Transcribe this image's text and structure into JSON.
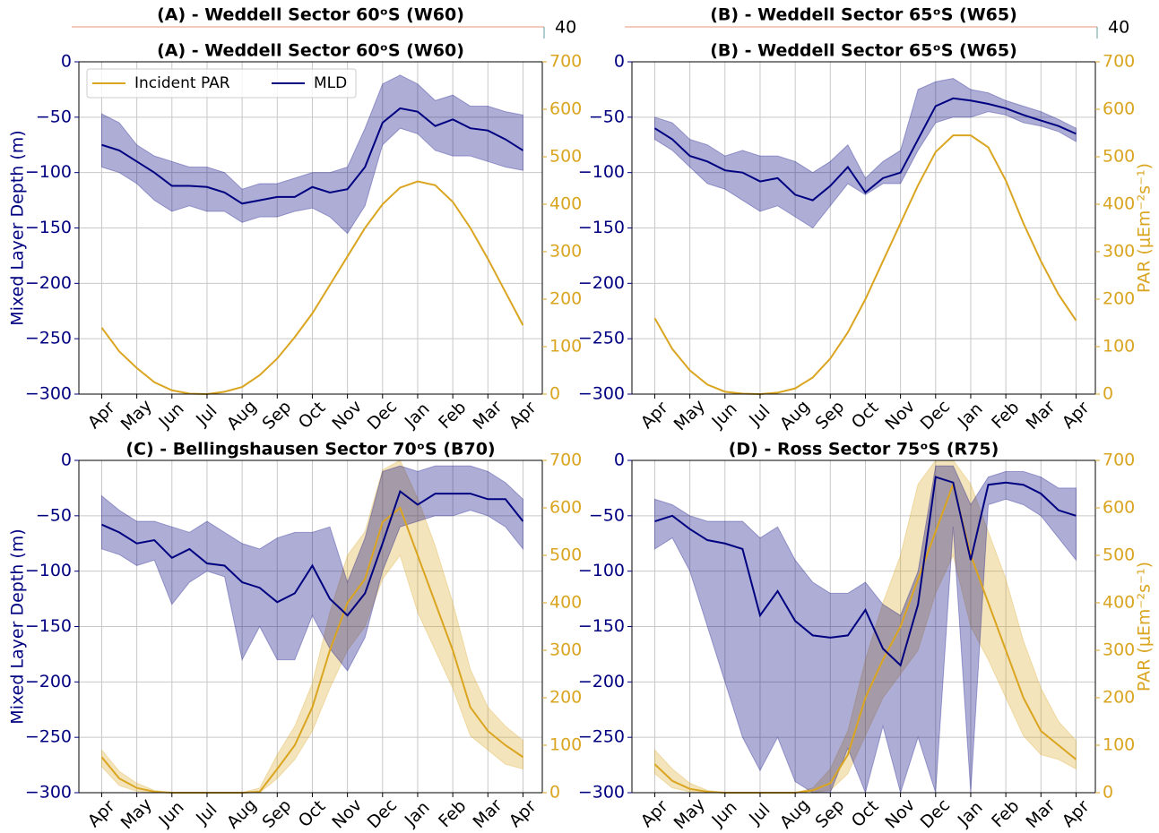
{
  "chart_data": [
    {
      "type": "line",
      "title": "(A) - Weddell Sector 60ᵒS (W60)",
      "overlay_title": "(A) - Weddell Sector 60ᵒS (W60)",
      "overlay_label": "40",
      "y_label": "Mixed Layer Depth (m)",
      "grid": true,
      "legend": "upper left",
      "x": [
        0,
        0.5,
        1,
        1.5,
        2,
        2.5,
        3,
        3.5,
        4,
        4.5,
        5,
        5.5,
        6,
        6.5,
        7,
        7.5,
        8,
        8.5,
        9,
        9.5,
        10,
        10.5,
        11,
        11.5,
        12
      ],
      "xlim": [
        -0.65,
        12.55
      ],
      "xticks": [
        {
          "value": 0,
          "label": "Apr"
        },
        {
          "value": 1,
          "label": "May"
        },
        {
          "value": 2,
          "label": "Jun"
        },
        {
          "value": 3,
          "label": "Jul"
        },
        {
          "value": 4,
          "label": "Aug"
        },
        {
          "value": 5,
          "label": "Sep"
        },
        {
          "value": 6,
          "label": "Oct"
        },
        {
          "value": 7,
          "label": "Nov"
        },
        {
          "value": 8,
          "label": "Dec"
        },
        {
          "value": 9,
          "label": "Jan"
        },
        {
          "value": 10,
          "label": "Feb"
        },
        {
          "value": 11,
          "label": "Mar"
        },
        {
          "value": 12,
          "label": "Apr"
        }
      ],
      "ylim": [
        -300,
        0
      ],
      "yticks": [
        {
          "value": -300,
          "label": "−300"
        },
        {
          "value": -250,
          "label": "−250"
        },
        {
          "value": -200,
          "label": "−200"
        },
        {
          "value": -150,
          "label": "−150"
        },
        {
          "value": -100,
          "label": "−100"
        },
        {
          "value": -50,
          "label": "−50"
        },
        0
      ],
      "y2lim": [
        0,
        700
      ],
      "y2ticks": [
        0,
        100,
        200,
        300,
        400,
        500,
        600,
        700
      ],
      "series": [
        {
          "name": "Incident PAR",
          "color": "#daa520",
          "axis": "y2",
          "values": [
            140,
            90,
            55,
            25,
            8,
            1,
            0,
            5,
            15,
            40,
            75,
            120,
            170,
            230,
            290,
            350,
            400,
            435,
            448,
            440,
            405,
            350,
            285,
            215,
            145
          ]
        },
        {
          "name": "MLD",
          "color": "#000080",
          "values": [
            -75,
            -80,
            -90,
            -100,
            -112,
            -112,
            -113,
            -118,
            -128,
            -125,
            -122,
            -122,
            -113,
            -118,
            -115,
            -95,
            -55,
            -42,
            -45,
            -58,
            -52,
            -60,
            -62,
            -70,
            -80
          ],
          "band_low": [
            -95,
            -100,
            -110,
            -125,
            -135,
            -130,
            -135,
            -135,
            -145,
            -140,
            -140,
            -135,
            -132,
            -140,
            -155,
            -130,
            -75,
            -60,
            -65,
            -80,
            -85,
            -85,
            -90,
            -95,
            -98
          ],
          "band_high": [
            -47,
            -55,
            -75,
            -85,
            -90,
            -95,
            -95,
            -100,
            -115,
            -110,
            -110,
            -105,
            -100,
            -100,
            -95,
            -60,
            -20,
            -12,
            -20,
            -35,
            -30,
            -40,
            -40,
            -45,
            -48
          ]
        }
      ]
    },
    {
      "type": "line",
      "title": "(B) - Weddell Sector 65ᵒS (W65)",
      "overlay_title": "(B) - Weddell Sector 65ᵒS (W65)",
      "overlay_label": "40",
      "y2_label": "PAR (μEm⁻²s⁻¹)",
      "grid": true,
      "x": [
        0,
        0.5,
        1,
        1.5,
        2,
        2.5,
        3,
        3.5,
        4,
        4.5,
        5,
        5.5,
        6,
        6.5,
        7,
        7.5,
        8,
        8.5,
        9,
        9.5,
        10,
        10.5,
        11,
        11.5,
        12
      ],
      "xlim": [
        -0.65,
        12.55
      ],
      "xticks": [
        {
          "value": 0,
          "label": "Apr"
        },
        {
          "value": 1,
          "label": "May"
        },
        {
          "value": 2,
          "label": "Jun"
        },
        {
          "value": 3,
          "label": "Jul"
        },
        {
          "value": 4,
          "label": "Aug"
        },
        {
          "value": 5,
          "label": "Sep"
        },
        {
          "value": 6,
          "label": "Oct"
        },
        {
          "value": 7,
          "label": "Nov"
        },
        {
          "value": 8,
          "label": "Dec"
        },
        {
          "value": 9,
          "label": "Jan"
        },
        {
          "value": 10,
          "label": "Feb"
        },
        {
          "value": 11,
          "label": "Mar"
        },
        {
          "value": 12,
          "label": "Apr"
        }
      ],
      "ylim": [
        -300,
        0
      ],
      "yticks": [
        {
          "value": -300,
          "label": "−300"
        },
        {
          "value": -250,
          "label": "−250"
        },
        {
          "value": -200,
          "label": "−200"
        },
        {
          "value": -150,
          "label": "−150"
        },
        {
          "value": -100,
          "label": "−100"
        },
        {
          "value": -50,
          "label": "−50"
        },
        0
      ],
      "y2lim": [
        0,
        700
      ],
      "y2ticks": [
        0,
        100,
        200,
        300,
        400,
        500,
        600,
        700
      ],
      "series": [
        {
          "color": "#daa520",
          "axis": "y2",
          "values": [
            160,
            95,
            50,
            20,
            5,
            1,
            0,
            3,
            12,
            35,
            75,
            130,
            200,
            280,
            360,
            440,
            510,
            545,
            545,
            520,
            450,
            360,
            280,
            210,
            155
          ]
        },
        {
          "color": "#000080",
          "values": [
            -60,
            -70,
            -85,
            -90,
            -98,
            -100,
            -108,
            -105,
            -120,
            -125,
            -112,
            -95,
            -118,
            -105,
            -100,
            -70,
            -40,
            -33,
            -35,
            -38,
            -42,
            -48,
            -53,
            -58,
            -65
          ],
          "band_low": [
            -70,
            -80,
            -95,
            -110,
            -115,
            -125,
            -135,
            -130,
            -140,
            -150,
            -130,
            -110,
            -120,
            -110,
            -110,
            -80,
            -55,
            -50,
            -50,
            -45,
            -48,
            -55,
            -58,
            -63,
            -72
          ],
          "band_high": [
            -50,
            -55,
            -70,
            -75,
            -85,
            -80,
            -85,
            -85,
            -90,
            -100,
            -90,
            -75,
            -105,
            -90,
            -80,
            -25,
            -18,
            -15,
            -25,
            -28,
            -35,
            -40,
            -45,
            -52,
            -60
          ]
        }
      ]
    },
    {
      "type": "line",
      "title": "(C) - Bellingshausen Sector 70ᵒS (B70)",
      "y_label": "Mixed Layer Depth (m)",
      "grid": true,
      "x": [
        0,
        0.5,
        1,
        1.5,
        2,
        2.5,
        3,
        3.5,
        4,
        4.5,
        5,
        5.5,
        6,
        6.5,
        7,
        7.5,
        8,
        8.5,
        9,
        9.5,
        10,
        10.5,
        11,
        11.5,
        12
      ],
      "xlim": [
        -0.65,
        12.55
      ],
      "xticks": [
        {
          "value": 0,
          "label": "Apr"
        },
        {
          "value": 1,
          "label": "May"
        },
        {
          "value": 2,
          "label": "Jun"
        },
        {
          "value": 3,
          "label": "Jul"
        },
        {
          "value": 4,
          "label": "Aug"
        },
        {
          "value": 5,
          "label": "Sep"
        },
        {
          "value": 6,
          "label": "Oct"
        },
        {
          "value": 7,
          "label": "Nov"
        },
        {
          "value": 8,
          "label": "Dec"
        },
        {
          "value": 9,
          "label": "Jan"
        },
        {
          "value": 10,
          "label": "Feb"
        },
        {
          "value": 11,
          "label": "Mar"
        },
        {
          "value": 12,
          "label": "Apr"
        }
      ],
      "ylim": [
        -300,
        0
      ],
      "yticks": [
        {
          "value": -300,
          "label": "−300"
        },
        {
          "value": -250,
          "label": "−250"
        },
        {
          "value": -200,
          "label": "−200"
        },
        {
          "value": -150,
          "label": "−150"
        },
        {
          "value": -100,
          "label": "−100"
        },
        {
          "value": -50,
          "label": "−50"
        },
        0
      ],
      "y2lim": [
        0,
        700
      ],
      "y2ticks": [
        0,
        100,
        200,
        300,
        400,
        500,
        600,
        700
      ],
      "series": [
        {
          "color": "#daa520",
          "axis": "y2",
          "values": [
            75,
            30,
            10,
            2,
            0,
            0,
            0,
            0,
            0,
            2,
            50,
            100,
            180,
            300,
            400,
            450,
            570,
            600,
            500,
            400,
            300,
            180,
            130,
            100,
            75
          ],
          "band_low": [
            55,
            15,
            3,
            0,
            0,
            0,
            0,
            0,
            0,
            0,
            30,
            70,
            130,
            220,
            300,
            350,
            450,
            500,
            380,
            300,
            220,
            120,
            90,
            60,
            50
          ],
          "band_high": [
            90,
            45,
            20,
            5,
            0,
            0,
            0,
            0,
            0,
            10,
            80,
            140,
            230,
            380,
            500,
            550,
            680,
            700,
            620,
            520,
            400,
            260,
            180,
            140,
            110
          ]
        },
        {
          "color": "#000080",
          "values": [
            -58,
            -65,
            -75,
            -72,
            -88,
            -80,
            -93,
            -95,
            -110,
            -115,
            -128,
            -120,
            -95,
            -125,
            -140,
            -120,
            -75,
            -28,
            -40,
            -30,
            -30,
            -30,
            -35,
            -35,
            -55
          ],
          "band_low": [
            -80,
            -85,
            -95,
            -90,
            -130,
            -110,
            -100,
            -105,
            -180,
            -150,
            -180,
            -180,
            -140,
            -170,
            -190,
            -160,
            -100,
            -60,
            -55,
            -50,
            -50,
            -45,
            -50,
            -60,
            -80
          ],
          "band_high": [
            -32,
            -45,
            -55,
            -55,
            -60,
            -65,
            -55,
            -65,
            -75,
            -80,
            -70,
            -65,
            -65,
            -60,
            -110,
            -70,
            -10,
            -5,
            -10,
            -5,
            -5,
            -5,
            -10,
            -20,
            -35
          ]
        }
      ]
    },
    {
      "type": "line",
      "title": "(D) - Ross Sector 75ᵒS (R75)",
      "y2_label": "PAR (μEm⁻²s⁻¹)",
      "grid": true,
      "x": [
        0,
        0.5,
        1,
        1.5,
        2,
        2.5,
        3,
        3.5,
        4,
        4.5,
        5,
        5.5,
        6,
        6.5,
        7,
        7.5,
        8,
        8.5,
        9,
        9.5,
        10,
        10.5,
        11,
        11.5,
        12
      ],
      "xlim": [
        -0.65,
        12.55
      ],
      "xticks": [
        {
          "value": 0,
          "label": "Apr"
        },
        {
          "value": 1,
          "label": "May"
        },
        {
          "value": 2,
          "label": "Jun"
        },
        {
          "value": 3,
          "label": "Jul"
        },
        {
          "value": 4,
          "label": "Aug"
        },
        {
          "value": 5,
          "label": "Sep"
        },
        {
          "value": 6,
          "label": "Oct"
        },
        {
          "value": 7,
          "label": "Nov"
        },
        {
          "value": 8,
          "label": "Dec"
        },
        {
          "value": 9,
          "label": "Jan"
        },
        {
          "value": 10,
          "label": "Feb"
        },
        {
          "value": 11,
          "label": "Mar"
        },
        {
          "value": 12,
          "label": "Apr"
        }
      ],
      "ylim": [
        -300,
        0
      ],
      "yticks": [
        {
          "value": -300,
          "label": "−300"
        },
        {
          "value": -250,
          "label": "−250"
        },
        {
          "value": -200,
          "label": "−200"
        },
        {
          "value": -150,
          "label": "−150"
        },
        {
          "value": -100,
          "label": "−100"
        },
        {
          "value": -50,
          "label": "−50"
        },
        0
      ],
      "y2lim": [
        0,
        700
      ],
      "y2ticks": [
        0,
        100,
        200,
        300,
        400,
        500,
        600,
        700
      ],
      "series": [
        {
          "color": "#daa520",
          "axis": "y2",
          "values": [
            60,
            25,
            8,
            2,
            0,
            0,
            0,
            0,
            0,
            5,
            20,
            80,
            200,
            280,
            350,
            450,
            550,
            650,
            500,
            400,
            300,
            200,
            130,
            100,
            70
          ],
          "band_low": [
            40,
            10,
            2,
            0,
            0,
            0,
            0,
            0,
            0,
            0,
            5,
            40,
            120,
            200,
            250,
            300,
            420,
            500,
            350,
            280,
            200,
            120,
            80,
            70,
            50
          ],
          "band_high": [
            90,
            50,
            20,
            5,
            0,
            0,
            0,
            0,
            0,
            10,
            50,
            130,
            280,
            400,
            500,
            650,
            700,
            700,
            650,
            550,
            450,
            320,
            220,
            150,
            110
          ]
        },
        {
          "color": "#000080",
          "values": [
            -55,
            -50,
            -62,
            -72,
            -75,
            -80,
            -140,
            -118,
            -145,
            -158,
            -160,
            -158,
            -135,
            -170,
            -185,
            -130,
            -15,
            -20,
            -90,
            -22,
            -20,
            -22,
            -30,
            -45,
            -50
          ],
          "band_low": [
            -80,
            -70,
            -100,
            -150,
            -200,
            -250,
            -280,
            -250,
            -290,
            -300,
            -300,
            -260,
            -300,
            -240,
            -300,
            -250,
            -300,
            -60,
            -300,
            -40,
            -35,
            -40,
            -50,
            -70,
            -90
          ],
          "band_high": [
            -35,
            -40,
            -50,
            -55,
            -55,
            -55,
            -70,
            -60,
            -90,
            -110,
            -120,
            -120,
            -110,
            -130,
            -140,
            -100,
            -5,
            -5,
            -40,
            -15,
            -10,
            -10,
            -15,
            -25,
            -25
          ]
        }
      ]
    }
  ]
}
